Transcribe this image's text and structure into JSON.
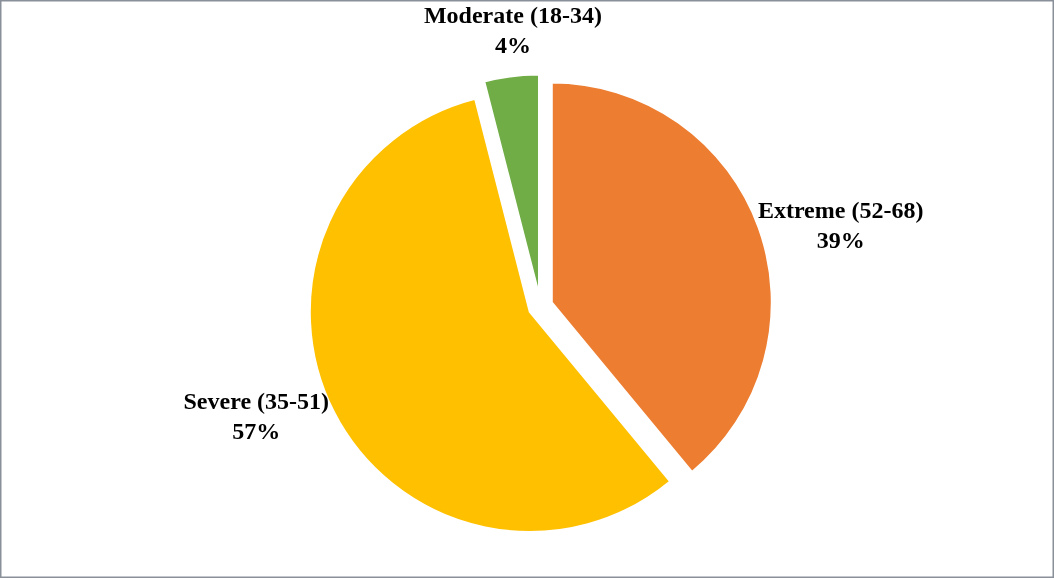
{
  "chart_data": {
    "type": "pie",
    "categories": [
      "Extreme (52-68)",
      "Severe (35-51)",
      "Moderate (18-34)"
    ],
    "values": [
      39,
      57,
      4
    ],
    "colors": [
      "#ed7d31",
      "#ffc000",
      "#70ad47"
    ],
    "value_labels": [
      "39%",
      "57%",
      "4%"
    ]
  }
}
